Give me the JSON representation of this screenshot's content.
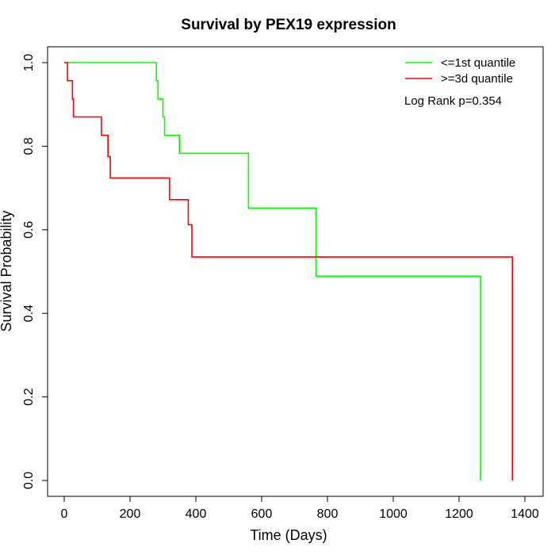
{
  "chart_data": {
    "type": "line",
    "title": "Survival by PEX19 expression",
    "xlabel": "Time (Days)",
    "ylabel": "Survival Probability",
    "xlim": [
      0,
      1400
    ],
    "ylim": [
      0,
      1.0
    ],
    "x_ticks": [
      "0",
      "200",
      "400",
      "600",
      "800",
      "1000",
      "1200",
      "1400"
    ],
    "y_ticks": [
      "0.0",
      "0.2",
      "0.4",
      "0.6",
      "0.8",
      "1.0"
    ],
    "grid": false,
    "legend_position": "top-right",
    "annotation": "Log Rank p=0.354",
    "series": [
      {
        "name": "<=1st quantile",
        "color": "#00ff00",
        "x": [
          0,
          130,
          280,
          285,
          300,
          305,
          350,
          560,
          765,
          1265,
          1265
        ],
        "y": [
          1.0,
          1.0,
          0.957,
          0.913,
          0.87,
          0.826,
          0.783,
          0.652,
          0.489,
          0.489,
          0.0
        ]
      },
      {
        "name": ">=3d quantile",
        "color": "#ff0000",
        "x": [
          0,
          10,
          25,
          28,
          113,
          133,
          140,
          320,
          377,
          388,
          1362,
          1362
        ],
        "y": [
          1.0,
          0.957,
          0.913,
          0.87,
          0.826,
          0.775,
          0.724,
          0.672,
          0.612,
          0.535,
          0.535,
          0.0
        ]
      }
    ]
  }
}
